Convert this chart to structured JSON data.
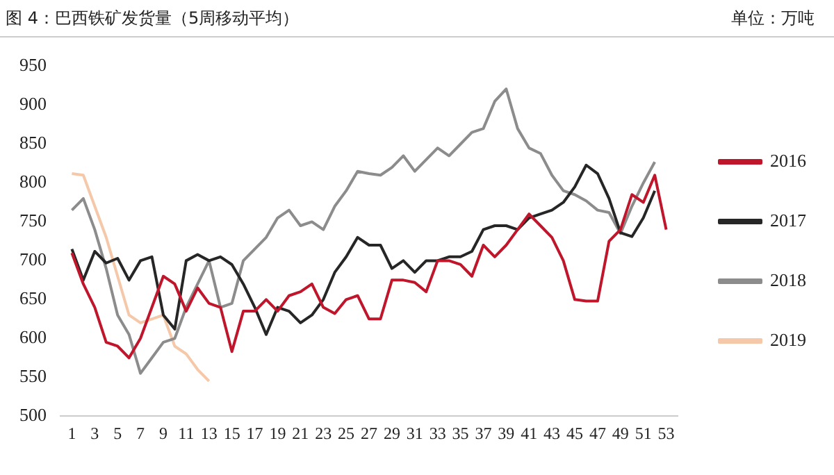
{
  "chart_data": {
    "type": "line",
    "title": "图 4：巴西铁矿发货量（5周移动平均）",
    "annotations": [
      "单位：万吨"
    ],
    "x": [
      1,
      2,
      3,
      4,
      5,
      6,
      7,
      8,
      9,
      10,
      11,
      12,
      13,
      14,
      15,
      16,
      17,
      18,
      19,
      20,
      21,
      22,
      23,
      24,
      25,
      26,
      27,
      28,
      29,
      30,
      31,
      32,
      33,
      34,
      35,
      36,
      37,
      38,
      39,
      40,
      41,
      42,
      43,
      44,
      45,
      46,
      47,
      48,
      49,
      50,
      51,
      52,
      53
    ],
    "xlim": [
      0,
      54
    ],
    "xticks": [
      1,
      3,
      5,
      7,
      9,
      11,
      13,
      15,
      17,
      19,
      21,
      23,
      25,
      27,
      29,
      31,
      33,
      35,
      37,
      39,
      41,
      43,
      45,
      47,
      49,
      51,
      53
    ],
    "ylim": [
      500,
      950
    ],
    "yticks": [
      500,
      550,
      600,
      650,
      700,
      750,
      800,
      850,
      900,
      950
    ],
    "grid": false,
    "legend": "right",
    "marker": "none",
    "line_style": "solid",
    "series": [
      {
        "name": "2016",
        "color": "#c0162c",
        "values": [
          710,
          670,
          640,
          595,
          590,
          575,
          600,
          640,
          680,
          670,
          635,
          665,
          645,
          640,
          583,
          635,
          635,
          650,
          635,
          655,
          660,
          670,
          640,
          632,
          650,
          655,
          625,
          625,
          675,
          675,
          672,
          660,
          700,
          700,
          695,
          680,
          720,
          705,
          720,
          740,
          760,
          745,
          730,
          700,
          650,
          648,
          648,
          725,
          740,
          785,
          775,
          810,
          740
        ]
      },
      {
        "name": "2017",
        "color": "#262626",
        "values": [
          715,
          675,
          712,
          697,
          703,
          675,
          700,
          705,
          630,
          612,
          700,
          708,
          700,
          705,
          695,
          670,
          640,
          605,
          640,
          635,
          620,
          630,
          650,
          685,
          705,
          730,
          720,
          720,
          690,
          700,
          685,
          700,
          700,
          705,
          705,
          712,
          740,
          745,
          745,
          740,
          755,
          760,
          765,
          775,
          795,
          823,
          812,
          780,
          736,
          731,
          755,
          790,
          null
        ]
      },
      {
        "name": "2018",
        "color": "#8c8c8c",
        "values": [
          765,
          780,
          740,
          690,
          630,
          605,
          555,
          575,
          595,
          600,
          640,
          670,
          700,
          640,
          645,
          700,
          715,
          730,
          755,
          765,
          745,
          750,
          740,
          770,
          790,
          815,
          812,
          810,
          820,
          835,
          815,
          830,
          845,
          835,
          850,
          865,
          870,
          905,
          921,
          870,
          845,
          838,
          810,
          790,
          785,
          777,
          765,
          762,
          735,
          770,
          800,
          827,
          null
        ]
      },
      {
        "name": "2019",
        "color": "#f4c8a8",
        "values": [
          812,
          810,
          770,
          730,
          680,
          630,
          620,
          625,
          630,
          590,
          580,
          560,
          545,
          null,
          null,
          null,
          null,
          null,
          null,
          null,
          null,
          null,
          null,
          null,
          null,
          null,
          null,
          null,
          null,
          null,
          null,
          null,
          null,
          null,
          null,
          null,
          null,
          null,
          null,
          null,
          null,
          null,
          null,
          null,
          null,
          null,
          null,
          null,
          null,
          null,
          null,
          null,
          null
        ]
      }
    ]
  }
}
